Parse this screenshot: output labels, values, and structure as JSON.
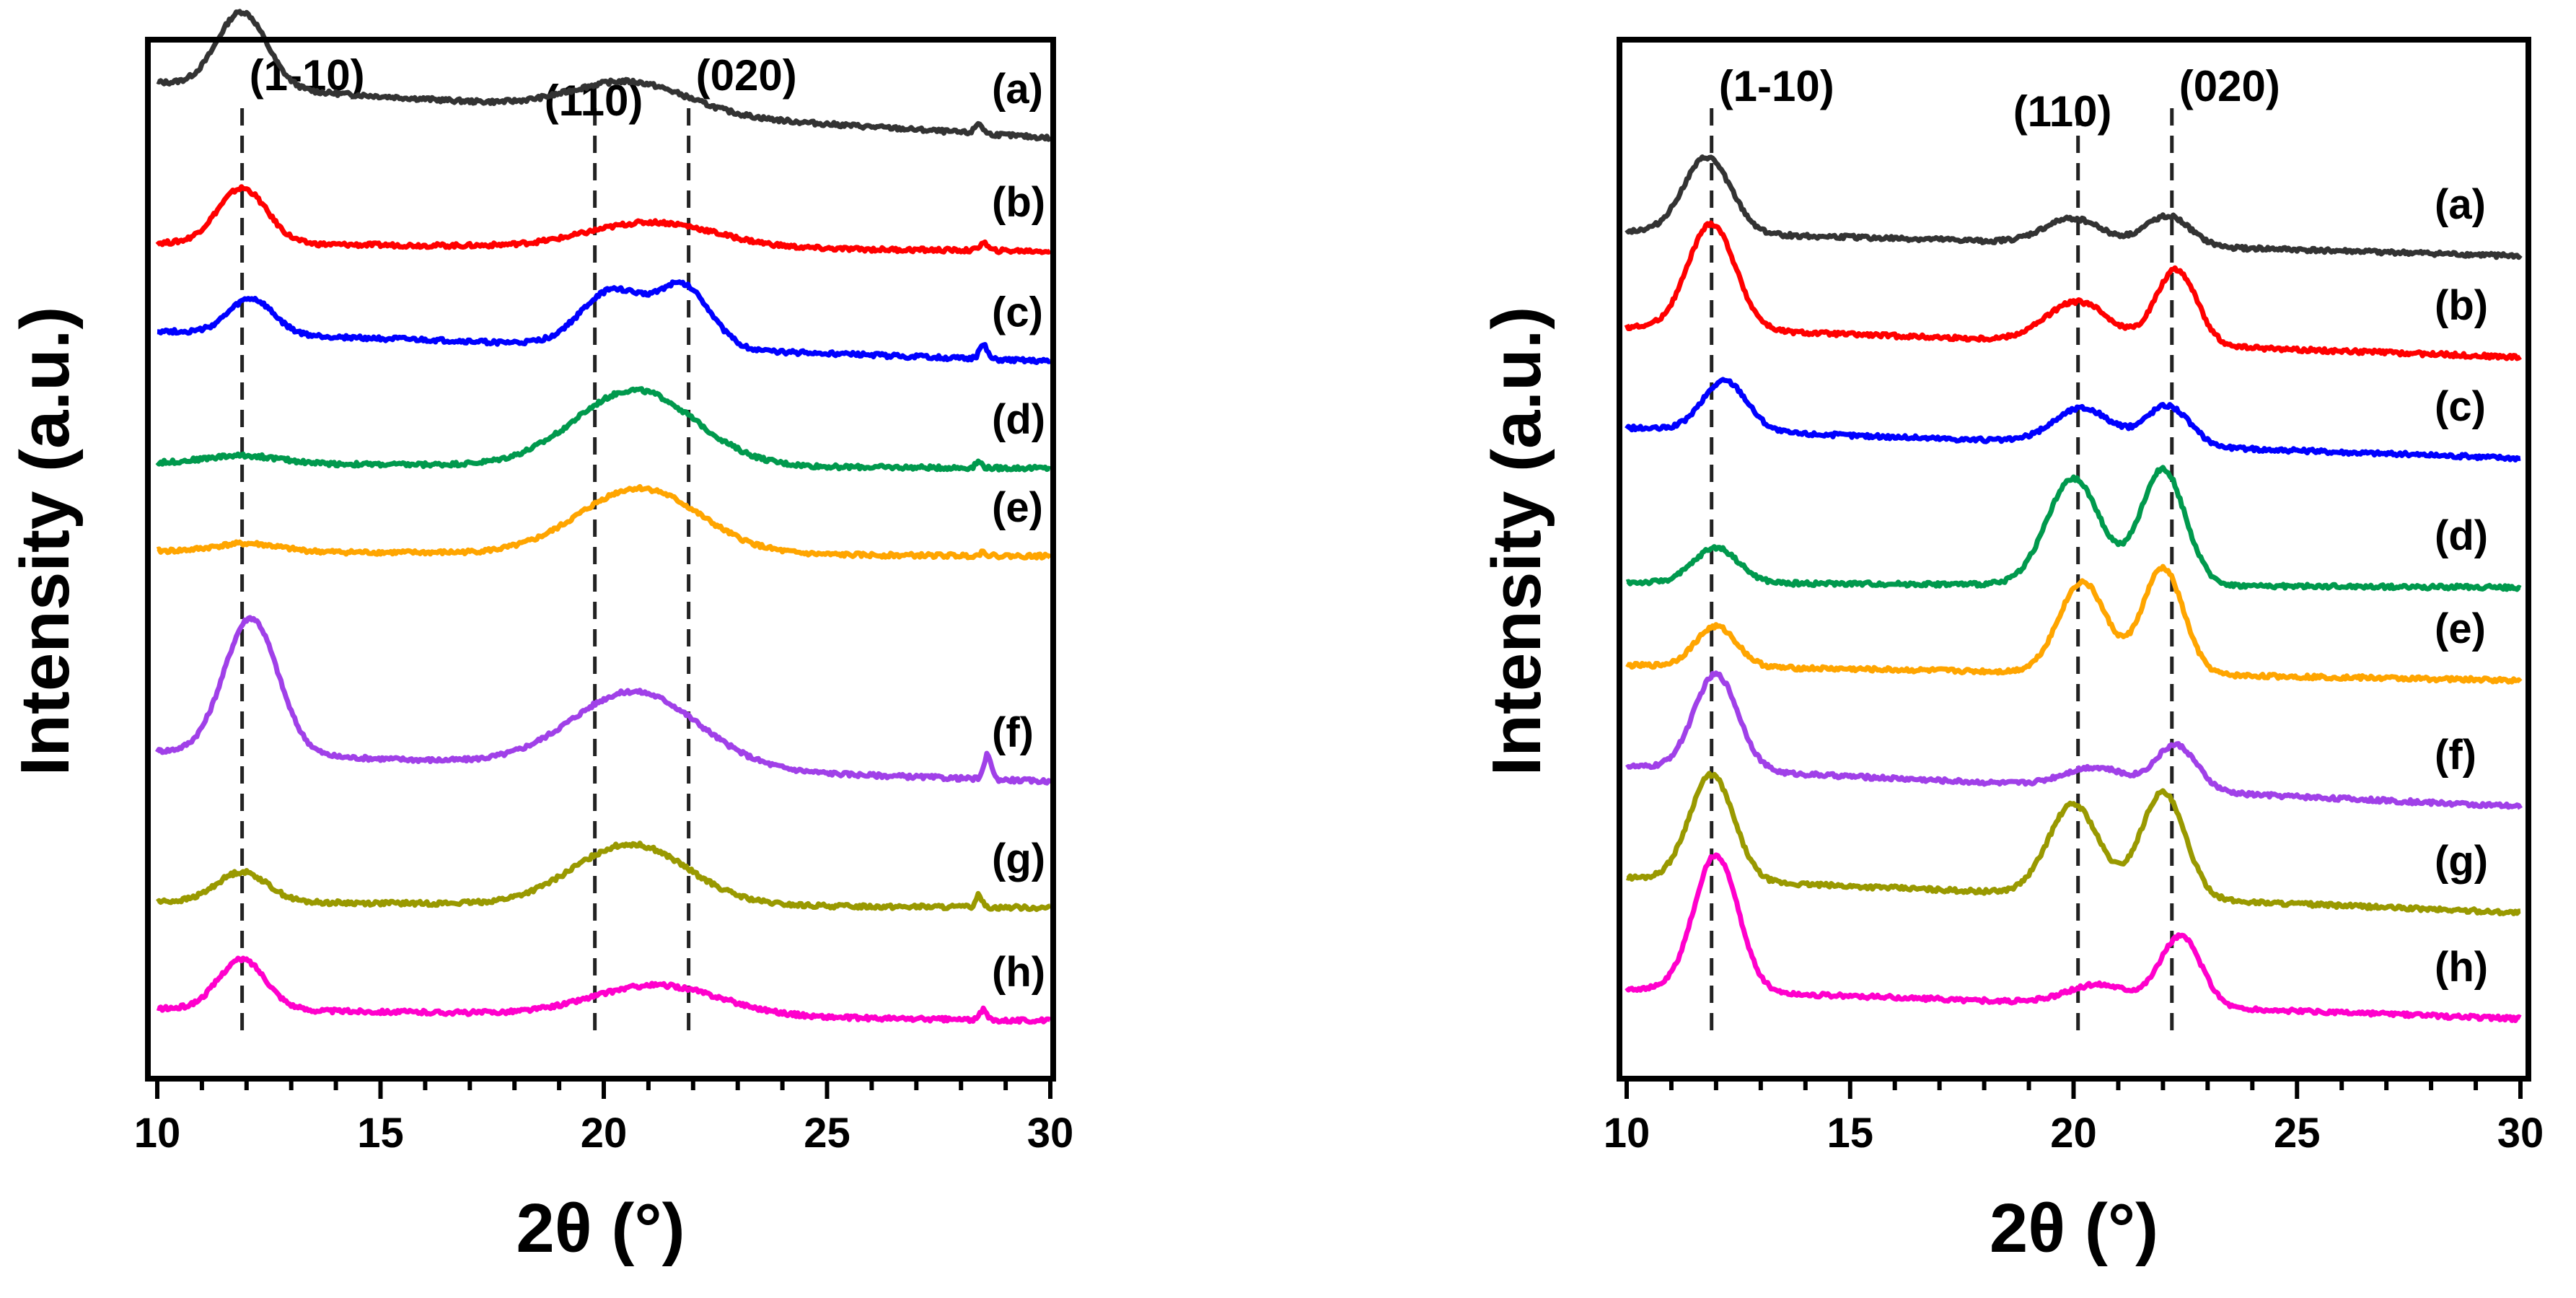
{
  "chart_data": [
    {
      "type": "line",
      "title": "",
      "xlabel": "2θ (°)",
      "ylabel": "Intensity (a.u.)",
      "xlim": [
        10,
        30
      ],
      "xticks": [
        "10",
        "15",
        "20",
        "25",
        "30"
      ],
      "yticks": [],
      "grid": false,
      "legend": "series labels at right end of each curve",
      "reference_lines": [
        {
          "label": "(1-10)",
          "x": 11.9
        },
        {
          "label": "(110)",
          "x": 19.8
        },
        {
          "label": "(020)",
          "x": 21.9
        }
      ],
      "series": [
        {
          "name": "(a)",
          "color": "#333333",
          "offset": 0.905,
          "base": [
            0.055,
            0.012
          ],
          "peaks": [
            [
              11.9,
              0.78,
              0.075
            ],
            [
              20.6,
              1.8,
              0.03
            ],
            [
              28.4,
              0.12,
              0.01
            ]
          ]
        },
        {
          "name": "(b)",
          "color": "#ff0000",
          "offset": 0.805,
          "base": [
            0.008,
            0.0
          ],
          "peaks": [
            [
              11.9,
              0.78,
              0.055
            ],
            [
              21.1,
              2.0,
              0.025
            ],
            [
              28.5,
              0.12,
              0.008
            ]
          ]
        },
        {
          "name": "(c)",
          "color": "#0000ff",
          "offset": 0.686,
          "base": [
            0.03,
            0.01
          ],
          "peaks": [
            [
              12.1,
              0.7,
              0.035
            ],
            [
              20.2,
              1.0,
              0.055
            ],
            [
              21.8,
              0.85,
              0.06
            ],
            [
              28.5,
              0.12,
              0.014
            ]
          ]
        },
        {
          "name": "(d)",
          "color": "#00994d",
          "offset": 0.59,
          "base": [
            0.005,
            0.0
          ],
          "peaks": [
            [
              11.9,
              1.2,
              0.008
            ],
            [
              20.7,
              1.9,
              0.075
            ],
            [
              28.4,
              0.1,
              0.006
            ]
          ]
        },
        {
          "name": "(e)",
          "color": "#ffa500",
          "offset": 0.503,
          "base": [
            0.005,
            0.0
          ],
          "peaks": [
            [
              12.0,
              1.0,
              0.008
            ],
            [
              20.8,
              1.9,
              0.065
            ],
            [
              28.5,
              0.1,
              0.004
            ]
          ]
        },
        {
          "name": "(f)",
          "color": "#a040e8",
          "offset": 0.28,
          "base": [
            0.03,
            0.0
          ],
          "peaks": [
            [
              12.1,
              0.85,
              0.135
            ],
            [
              20.7,
              2.0,
              0.075
            ],
            [
              28.6,
              0.11,
              0.025
            ]
          ]
        },
        {
          "name": "(g)",
          "color": "#999900",
          "offset": 0.155,
          "base": [
            0.006,
            0.0
          ],
          "peaks": [
            [
              11.9,
              0.8,
              0.03
            ],
            [
              20.6,
              1.8,
              0.06
            ],
            [
              28.4,
              0.1,
              0.012
            ]
          ]
        },
        {
          "name": "(h)",
          "color": "#ff00cc",
          "offset": 0.043,
          "base": [
            0.012,
            0.0
          ],
          "peaks": [
            [
              11.9,
              0.75,
              0.05
            ],
            [
              21.2,
              2.0,
              0.03
            ],
            [
              28.5,
              0.1,
              0.01
            ]
          ]
        }
      ]
    },
    {
      "type": "line",
      "title": "",
      "xlabel": "2θ (°)",
      "ylabel": "Intensity (a.u.)",
      "xlim": [
        10,
        30
      ],
      "xticks": [
        "10",
        "15",
        "20",
        "25",
        "30"
      ],
      "yticks": [],
      "grid": false,
      "legend": "series labels at right end of each curve",
      "reference_lines": [
        {
          "label": "(1-10)",
          "x": 11.9
        },
        {
          "label": "(110)",
          "x": 20.1
        },
        {
          "label": "(020)",
          "x": 22.2
        }
      ],
      "series": [
        {
          "name": "(a)",
          "color": "#333333",
          "offset": 0.8,
          "base": [
            0.025,
            0.0
          ],
          "peaks": [
            [
              11.8,
              0.75,
              0.075
            ],
            [
              20.0,
              0.9,
              0.025
            ],
            [
              22.1,
              0.7,
              0.03
            ]
          ]
        },
        {
          "name": "(b)",
          "color": "#ff0000",
          "offset": 0.7,
          "base": [
            0.03,
            0.0
          ],
          "peaks": [
            [
              11.9,
              0.75,
              0.105
            ],
            [
              20.1,
              1.0,
              0.04
            ],
            [
              22.3,
              0.65,
              0.075
            ]
          ]
        },
        {
          "name": "(c)",
          "color": "#0000ff",
          "offset": 0.6,
          "base": [
            0.03,
            0.0
          ],
          "peaks": [
            [
              12.2,
              0.7,
              0.05
            ],
            [
              20.2,
              0.9,
              0.035
            ],
            [
              22.1,
              0.7,
              0.04
            ]
          ]
        },
        {
          "name": "(d)",
          "color": "#00994d",
          "offset": 0.472,
          "base": [
            0.005,
            0.0
          ],
          "peaks": [
            [
              12.0,
              0.7,
              0.035
            ],
            [
              20.0,
              0.85,
              0.105
            ],
            [
              22.0,
              0.7,
              0.115
            ]
          ]
        },
        {
          "name": "(e)",
          "color": "#ffa500",
          "offset": 0.38,
          "base": [
            0.015,
            0.0
          ],
          "peaks": [
            [
              12.0,
              0.65,
              0.04
            ],
            [
              20.2,
              0.75,
              0.09
            ],
            [
              22.0,
              0.65,
              0.105
            ]
          ]
        },
        {
          "name": "(f)",
          "color": "#a040e8",
          "offset": 0.245,
          "base": [
            0.04,
            0.01
          ],
          "peaks": [
            [
              12.0,
              0.7,
              0.095
            ],
            [
              20.5,
              1.0,
              0.02
            ],
            [
              22.3,
              0.65,
              0.045
            ]
          ]
        },
        {
          "name": "(g)",
          "color": "#999900",
          "offset": 0.14,
          "base": [
            0.035,
            0.01
          ],
          "peaks": [
            [
              11.9,
              0.7,
              0.105
            ],
            [
              20.0,
              0.8,
              0.09
            ],
            [
              22.0,
              0.7,
              0.105
            ]
          ]
        },
        {
          "name": "(h)",
          "color": "#ff00cc",
          "offset": 0.035,
          "base": [
            0.03,
            0.01
          ],
          "peaks": [
            [
              12.0,
              0.7,
              0.135
            ],
            [
              20.6,
              1.0,
              0.02
            ],
            [
              22.4,
              0.65,
              0.07
            ]
          ]
        }
      ]
    }
  ]
}
